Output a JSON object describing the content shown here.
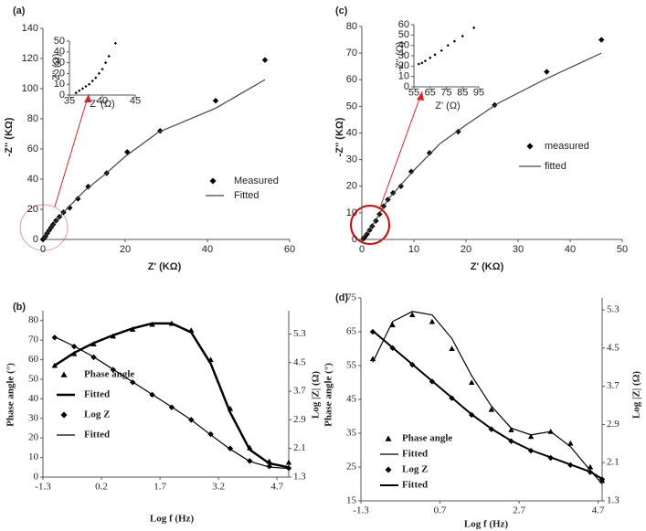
{
  "chart_data": [
    {
      "type": "scatter",
      "title": "(a)",
      "xlabel": "Z' (KΩ)",
      "ylabel": "-Z'' (KΩ)",
      "xlim": [
        0,
        60
      ],
      "xticks": [
        0,
        20,
        40,
        60
      ],
      "ylim": [
        0,
        140
      ],
      "yticks": [
        0,
        20,
        40,
        60,
        80,
        100,
        120,
        140
      ],
      "series": [
        {
          "name": "Measured",
          "color": "#000000",
          "mode": "markers",
          "marker": "diamond",
          "x": [
            0,
            0.3,
            0.6,
            1,
            1.5,
            2,
            2.5,
            3.2,
            4,
            5,
            6.5,
            8.5,
            11,
            15.5,
            20.5,
            28.5,
            42,
            54
          ],
          "values": [
            0,
            1,
            2,
            4,
            6,
            8,
            10,
            12.5,
            15,
            18,
            21,
            27,
            35,
            44,
            58,
            72,
            92,
            119
          ]
        },
        {
          "name": "Fitted",
          "color": "#444444",
          "mode": "line",
          "x": [
            0,
            2,
            5,
            10,
            15,
            20,
            28,
            42,
            54
          ],
          "values": [
            0,
            8,
            18,
            32,
            43,
            55,
            71,
            87,
            106
          ]
        }
      ],
      "inset": {
        "type": "scatter",
        "xlabel": "Z' (Ω)",
        "ylabel": "-Z'' (Ω)",
        "xlim": [
          35,
          45
        ],
        "xticks": [
          35,
          40,
          45
        ],
        "ylim": [
          0,
          50
        ],
        "yticks": [
          0,
          10,
          20,
          30,
          40,
          50
        ],
        "series": [
          {
            "color": "#000000",
            "mode": "markers",
            "marker": "diamond",
            "x": [
              36,
              36.5,
              37,
              37.5,
              38,
              38.5,
              39,
              39.5,
              40,
              40.5,
              41,
              42
            ],
            "values": [
              2,
              4,
              6,
              8,
              10,
              13,
              16,
              20,
              24,
              30,
              36,
              48
            ]
          }
        ]
      }
    },
    {
      "type": "line",
      "title": "(b)",
      "xlabel": "Log f (Hz)",
      "ylabel": "Phase angle (°)",
      "y2label": "Log |Z| (Ω)",
      "xlim": [
        -1.3,
        5.0
      ],
      "xticks": [
        -1.3,
        0.2,
        1.7,
        3.2,
        4.7
      ],
      "ylim": [
        0,
        85
      ],
      "yticks": [
        0,
        10,
        20,
        30,
        40,
        50,
        60,
        70,
        80
      ],
      "y2lim": [
        1.3,
        5.95
      ],
      "y2ticks": [
        1.3,
        2.1,
        2.9,
        3.7,
        4.5,
        5.3
      ],
      "series": [
        {
          "name": "Phase angle",
          "color": "#000000",
          "mode": "markers",
          "marker": "triangle",
          "x": [
            -1,
            -0.5,
            0,
            0.5,
            1,
            1.5,
            2,
            2.5,
            3,
            3.5,
            4,
            4.5,
            5
          ],
          "values": [
            57,
            63,
            68,
            72,
            75.5,
            78,
            78.5,
            75,
            60,
            35,
            15,
            8,
            7.5
          ]
        },
        {
          "name": "Fitted",
          "color": "#000000",
          "mode": "line",
          "width": 2.5,
          "x": [
            -1,
            -0.5,
            0,
            0.5,
            1,
            1.5,
            2,
            2.5,
            3,
            3.5,
            4,
            4.5,
            5
          ],
          "values": [
            57,
            63.5,
            68.5,
            72.5,
            76,
            78.5,
            78.5,
            74,
            58,
            33,
            14,
            7,
            5
          ]
        },
        {
          "name": "Log Z",
          "color": "#000000",
          "mode": "markers",
          "marker": "diamond",
          "axis": "y2",
          "x": [
            -1,
            -0.5,
            0,
            0.5,
            1,
            1.5,
            2,
            2.5,
            3,
            3.5,
            4,
            4.5,
            5
          ],
          "values": [
            5.2,
            4.95,
            4.65,
            4.3,
            3.95,
            3.6,
            3.25,
            2.9,
            2.5,
            2.1,
            1.75,
            1.6,
            1.55
          ]
        },
        {
          "name": "Fitted",
          "color": "#000000",
          "mode": "line",
          "axis": "y2",
          "x": [
            -1,
            -0.5,
            0,
            0.5,
            1,
            1.5,
            2,
            2.5,
            3,
            3.5,
            4,
            4.5,
            5
          ],
          "values": [
            5.22,
            4.96,
            4.66,
            4.31,
            3.96,
            3.61,
            3.26,
            2.9,
            2.48,
            2.08,
            1.74,
            1.58,
            1.54
          ]
        }
      ]
    },
    {
      "type": "scatter",
      "title": "(c)",
      "xlabel": "Z' (KΩ)",
      "ylabel": "-Z'' (KΩ)",
      "xlim": [
        0,
        50
      ],
      "xticks": [
        0,
        10,
        20,
        30,
        40,
        50
      ],
      "ylim": [
        0,
        80
      ],
      "yticks": [
        0,
        10,
        20,
        30,
        40,
        50,
        60,
        70,
        80
      ],
      "series": [
        {
          "name": "measured",
          "color": "#000000",
          "mode": "markers",
          "marker": "diamond",
          "x": [
            0.3,
            0.6,
            1,
            1.5,
            2,
            2.7,
            3.4,
            4.2,
            5,
            6,
            7.5,
            9.5,
            13,
            18.5,
            25.5,
            35.5,
            46
          ],
          "values": [
            0.3,
            1,
            2,
            3.5,
            5,
            7,
            9.5,
            12.5,
            15,
            17.5,
            20,
            25.5,
            32.5,
            40.5,
            50.5,
            63,
            75
          ]
        },
        {
          "name": "fitted",
          "color": "#444444",
          "mode": "line",
          "x": [
            0,
            2,
            5,
            10,
            15,
            20,
            26,
            35,
            46
          ],
          "values": [
            0,
            5,
            15,
            26,
            36,
            43,
            51,
            60,
            70
          ]
        }
      ],
      "inset": {
        "type": "scatter",
        "xlabel": "Z' (Ω)",
        "ylabel": "-Z'' (Ω)",
        "xlim": [
          55,
          95
        ],
        "xticks": [
          55,
          65,
          75,
          85,
          95
        ],
        "ylim": [
          0,
          60
        ],
        "yticks": [
          0,
          10,
          20,
          30,
          40,
          50,
          60
        ],
        "series": [
          {
            "color": "#000000",
            "mode": "markers",
            "marker": "diamond",
            "x": [
              58,
              60,
              62,
              65,
              68,
              72,
              76,
              80,
              85,
              92
            ],
            "values": [
              22,
              23,
              25,
              28,
              31,
              35,
              40,
              44,
              49,
              57
            ]
          }
        ]
      }
    },
    {
      "type": "line",
      "title": "(d)",
      "xlabel": "Log f (Hz)",
      "ylabel": "Phase angle (°)",
      "y2label": "Log |Z| (Ω)",
      "xlim": [
        -1.3,
        4.8
      ],
      "xticks": [
        -1.3,
        0.7,
        2.7,
        4.7
      ],
      "ylim": [
        15,
        75
      ],
      "yticks": [
        15,
        25,
        35,
        45,
        55,
        65,
        75
      ],
      "y2lim": [
        1.3,
        5.55
      ],
      "y2ticks": [
        1.3,
        2.1,
        2.9,
        3.7,
        4.5,
        5.3
      ],
      "series": [
        {
          "name": "Phase angle",
          "color": "#000000",
          "mode": "markers",
          "marker": "triangle",
          "x": [
            -1,
            -0.5,
            0,
            0.5,
            1,
            1.5,
            2,
            2.5,
            3,
            3.5,
            4,
            4.5,
            4.8
          ],
          "values": [
            57,
            67,
            70,
            68,
            60,
            50,
            42,
            36,
            34,
            35.5,
            32,
            25,
            21
          ]
        },
        {
          "name": "Fitted",
          "color": "#000000",
          "mode": "line",
          "x": [
            -1,
            -0.5,
            0,
            0.5,
            1,
            1.5,
            2,
            2.5,
            3,
            3.5,
            4,
            4.5,
            4.8
          ],
          "values": [
            56,
            68,
            71,
            70,
            63,
            52,
            43,
            36.5,
            34.5,
            35.5,
            31,
            24,
            20
          ]
        },
        {
          "name": "Log Z",
          "color": "#000000",
          "mode": "markers",
          "marker": "diamond",
          "axis": "y2",
          "x": [
            -1,
            -0.5,
            0,
            0.5,
            1,
            1.5,
            2,
            2.5,
            3,
            3.5,
            4,
            4.5,
            4.8
          ],
          "values": [
            4.84,
            4.5,
            4.15,
            3.8,
            3.45,
            3.1,
            2.8,
            2.55,
            2.35,
            2.2,
            2.05,
            1.9,
            1.75
          ]
        },
        {
          "name": "Fitted",
          "color": "#000000",
          "mode": "line",
          "width": 2,
          "axis": "y2",
          "x": [
            -1,
            -0.5,
            0,
            0.5,
            1,
            1.5,
            2,
            2.5,
            3,
            3.5,
            4,
            4.5,
            4.8
          ],
          "values": [
            4.86,
            4.51,
            4.16,
            3.81,
            3.46,
            3.11,
            2.81,
            2.56,
            2.36,
            2.21,
            2.06,
            1.91,
            1.76
          ]
        }
      ]
    }
  ]
}
